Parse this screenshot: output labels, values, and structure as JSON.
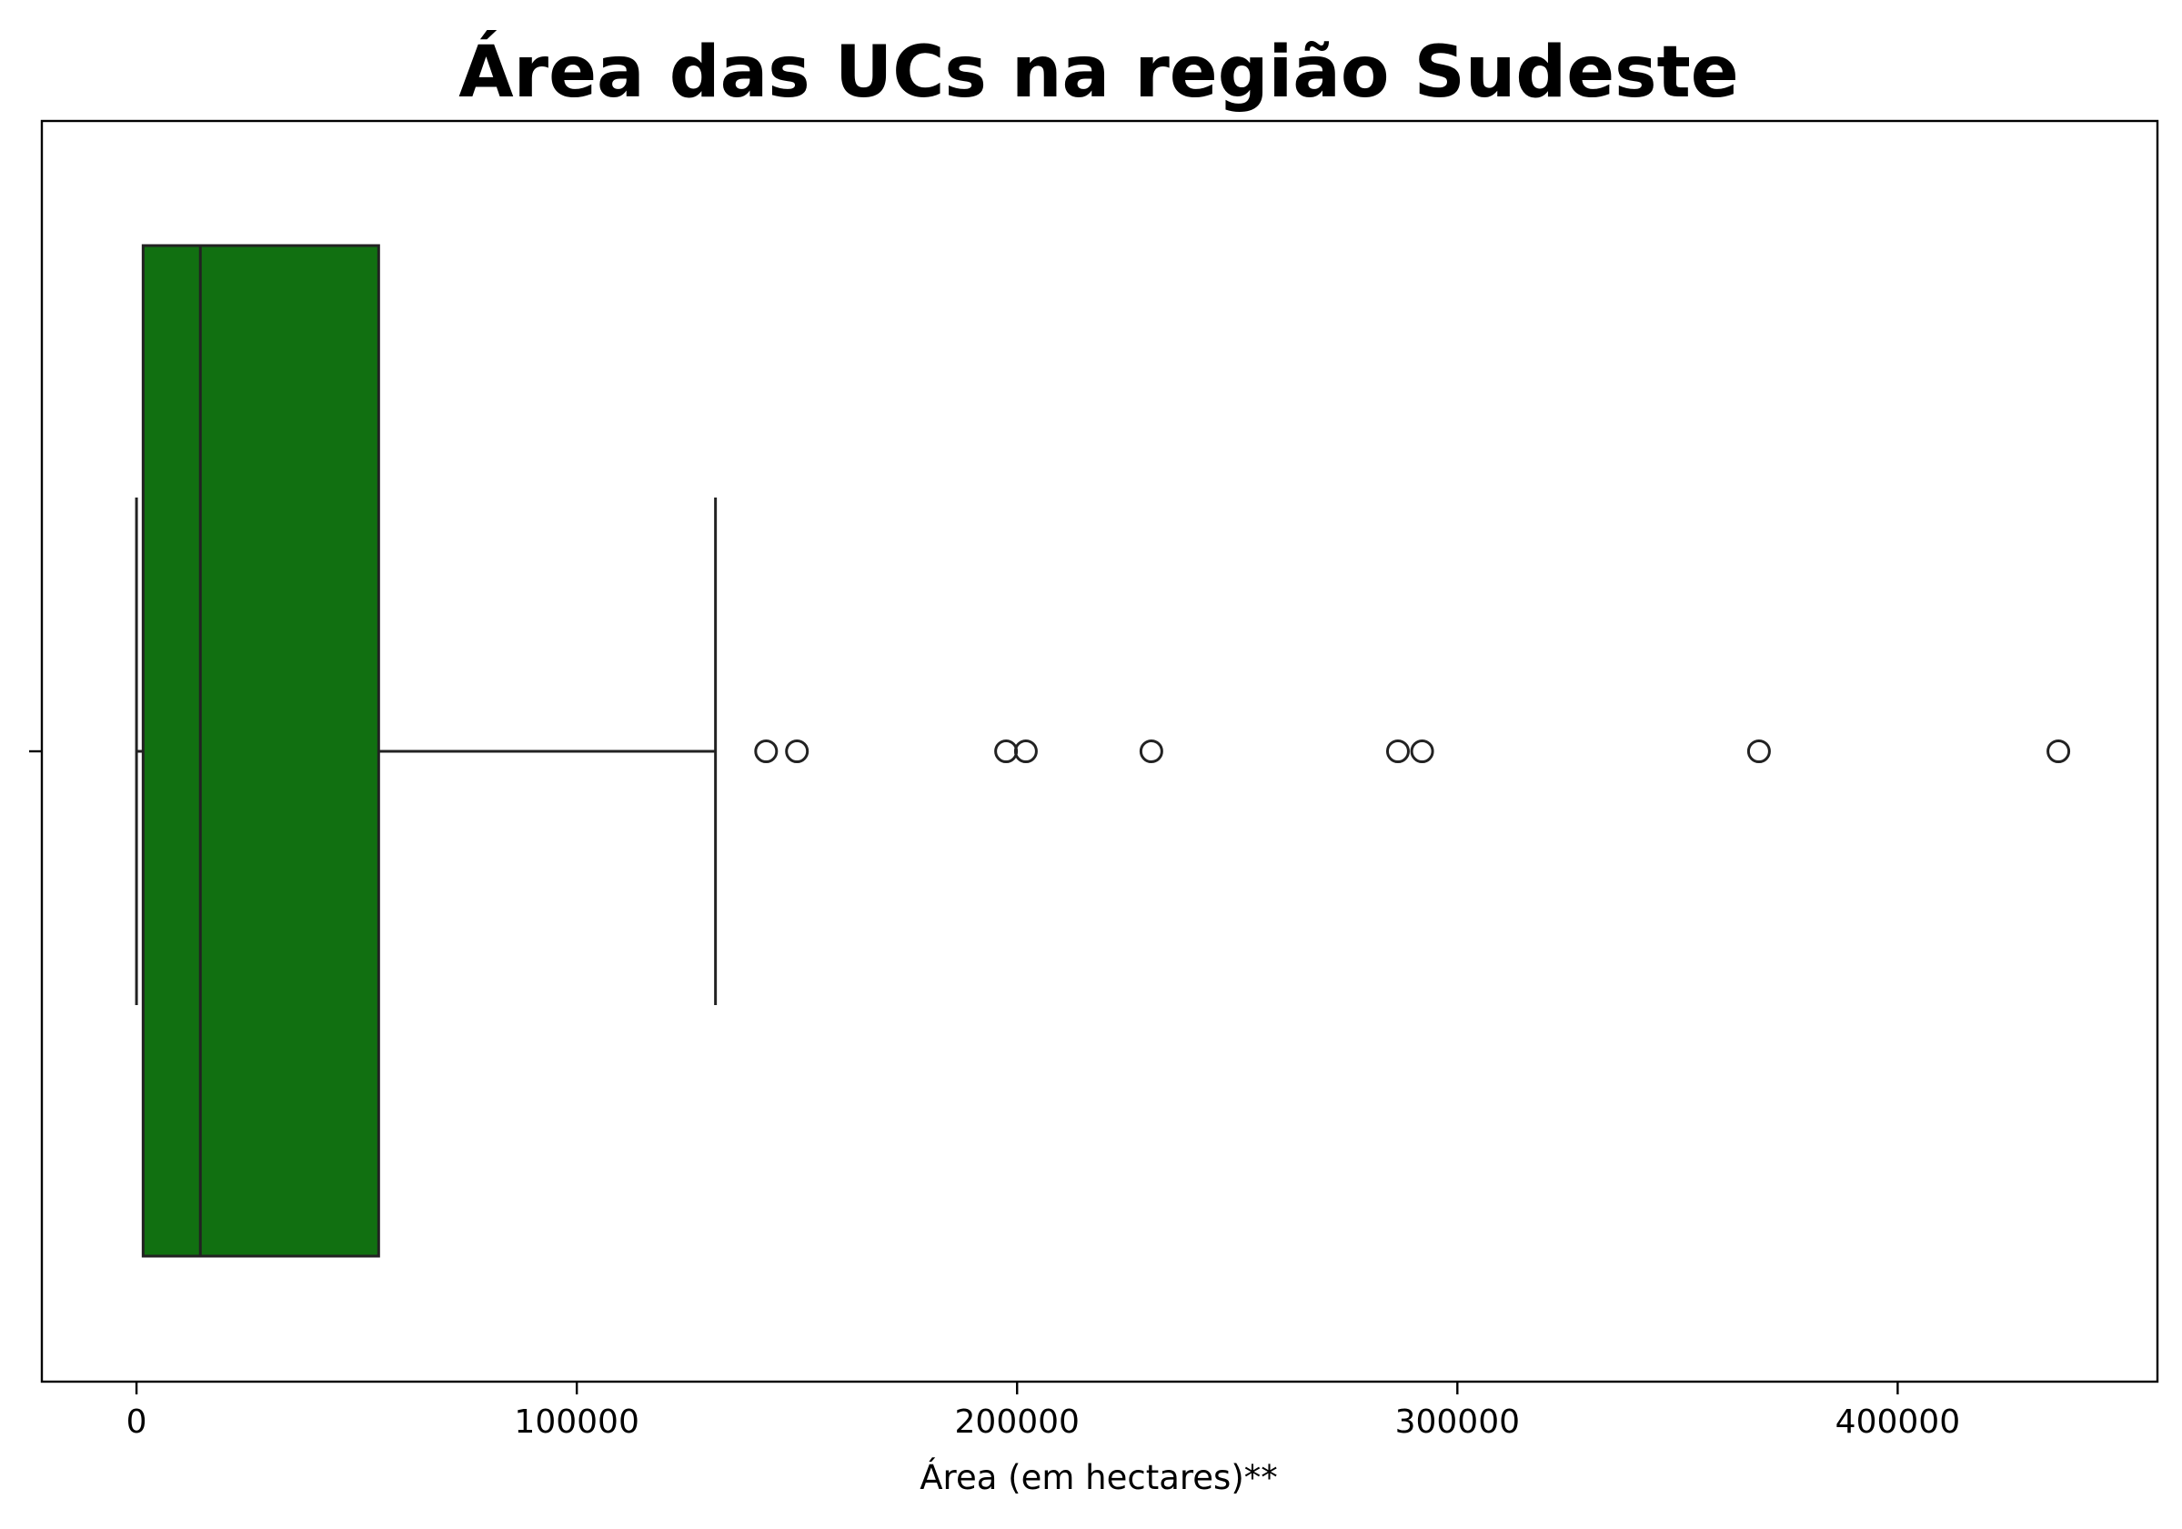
{
  "chart_data": {
    "type": "box",
    "orientation": "horizontal",
    "title": "Área das UCs na região Sudeste",
    "xlabel": "Área (em hectares)**",
    "ylabel": "",
    "xlim": [
      -21500,
      459000
    ],
    "x_ticks": [
      0,
      100000,
      200000,
      300000,
      400000
    ],
    "x_tick_labels": [
      "0",
      "100000",
      "200000",
      "300000",
      "400000"
    ],
    "box_color": "#117011",
    "line_color": "#222222",
    "grid": false,
    "box": {
      "whisker_low": 0,
      "q1": 1500,
      "median": 14500,
      "q3": 55000,
      "whisker_high": 131500
    },
    "outliers": [
      143000,
      150000,
      197500,
      202000,
      230500,
      286500,
      292000,
      368500,
      436500
    ]
  }
}
